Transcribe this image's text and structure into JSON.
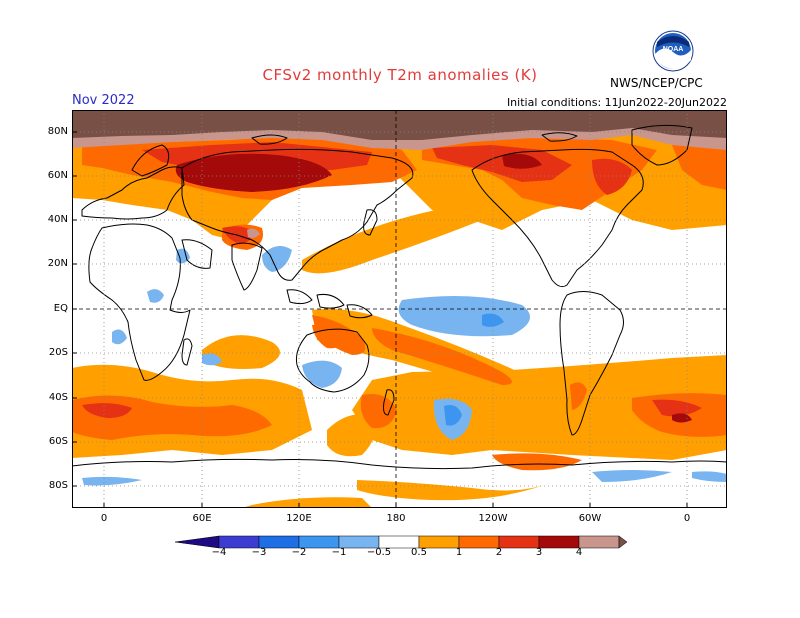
{
  "header": {
    "title": "CFSv2 monthly T2m anomalies (K)",
    "agency": "NWS/NCEP/CPC",
    "logo_text": "NOAA",
    "month": "Nov 2022",
    "initial_conditions": "Initial conditions: 11Jun2022-20Jun2022"
  },
  "map": {
    "lat_labels": [
      "80N",
      "60N",
      "40N",
      "20N",
      "EQ",
      "20S",
      "40S",
      "60S",
      "80S"
    ],
    "lon_labels": [
      "0",
      "60E",
      "120E",
      "180",
      "120W",
      "60W",
      "0"
    ],
    "longitude_range": [
      -20,
      380
    ],
    "latitude_range": [
      -90,
      90
    ]
  },
  "colorbar": {
    "labels": [
      "−4",
      "−3",
      "−2",
      "−1",
      "−0.5",
      "0.5",
      "1",
      "2",
      "3",
      "4"
    ],
    "colors": [
      "#1e0a82",
      "#3c3cd2",
      "#1e6ee6",
      "#3c96f0",
      "#78b4f0",
      "#ffffff",
      "#ffa000",
      "#ff6a00",
      "#e63214",
      "#a50a0a",
      "#c8968c",
      "#785046"
    ]
  },
  "colors": {
    "title": "#e03c3c",
    "month": "#2b2bc8"
  }
}
